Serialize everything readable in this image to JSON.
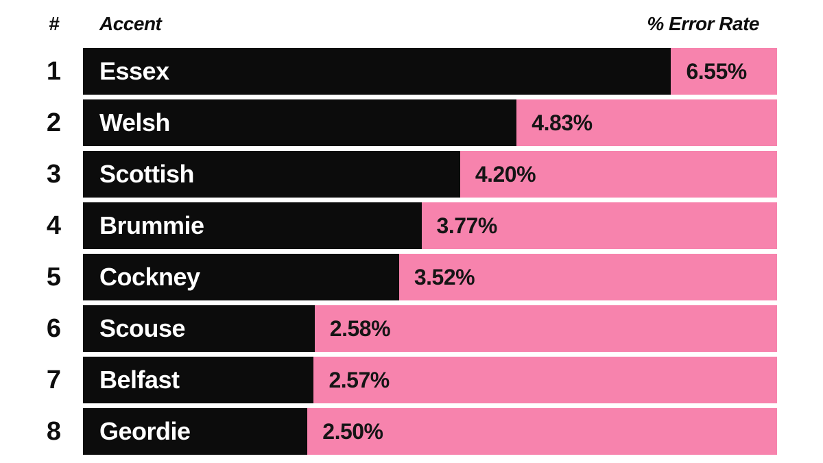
{
  "header": {
    "rank_label": "#",
    "accent_label": "Accent",
    "rate_label": "% Error Rate"
  },
  "colors": {
    "bar": "#0c0c0c",
    "track": "#f783ad",
    "background": "#ffffff",
    "bar_text": "#ffffff",
    "value_text": "#151515"
  },
  "chart_data": {
    "type": "bar",
    "orientation": "horizontal",
    "title": "",
    "xlabel": "% Error Rate",
    "ylabel": "Accent",
    "xlim": [
      0,
      7.73
    ],
    "grid": false,
    "legend": false,
    "ranks": [
      1,
      2,
      3,
      4,
      5,
      6,
      7,
      8
    ],
    "categories": [
      "Essex",
      "Welsh",
      "Scottish",
      "Brummie",
      "Cockney",
      "Scouse",
      "Belfast",
      "Geordie"
    ],
    "values": [
      6.55,
      4.83,
      4.2,
      3.77,
      3.52,
      2.58,
      2.57,
      2.5
    ],
    "value_labels": [
      "6.55%",
      "4.83%",
      "4.20%",
      "3.77%",
      "3.52%",
      "2.58%",
      "2.57%",
      "2.50%"
    ]
  }
}
